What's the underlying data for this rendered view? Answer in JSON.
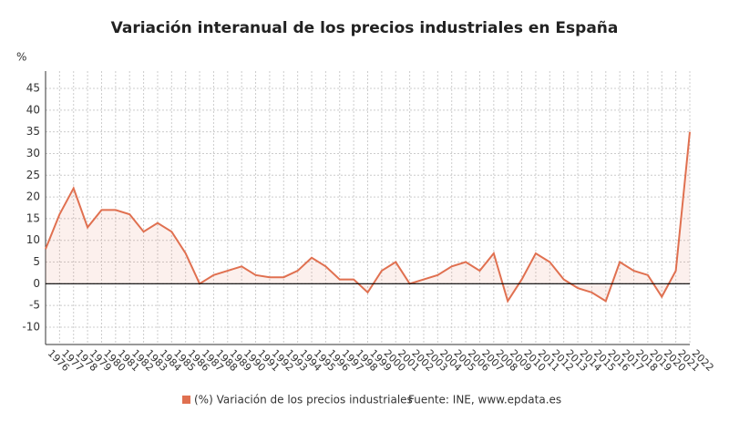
{
  "chart_data": {
    "type": "line",
    "title": "Variación interanual de los precios industriales en España",
    "y_label": "%",
    "source": "Fuente: INE, www.epdata.es",
    "x": [
      1976,
      1977,
      1978,
      1979,
      1980,
      1981,
      1982,
      1983,
      1984,
      1985,
      1986,
      1987,
      1988,
      1989,
      1990,
      1991,
      1992,
      1993,
      1994,
      1995,
      1996,
      1997,
      1998,
      1999,
      2000,
      2001,
      2002,
      2003,
      2004,
      2005,
      2006,
      2007,
      2008,
      2009,
      2010,
      2011,
      2012,
      2013,
      2014,
      2015,
      2016,
      2017,
      2018,
      2019,
      2020,
      2021,
      2022
    ],
    "series": [
      {
        "name": "(%) Variación de los precios industriales",
        "color": "#e07050",
        "values": [
          8,
          16,
          22,
          13,
          17,
          17,
          16,
          12,
          14,
          12,
          7,
          0,
          2,
          3,
          4,
          2,
          1.5,
          1.5,
          3,
          6,
          4,
          1,
          1,
          -2,
          3,
          5,
          0,
          1,
          2,
          4,
          5,
          3,
          7,
          -4,
          1,
          7,
          5,
          1,
          -1,
          -2,
          -4,
          5,
          3,
          2,
          -3,
          3,
          35
        ]
      }
    ],
    "xlim": [
      1976,
      2022
    ],
    "ylim": [
      -14,
      49
    ],
    "yticks": [
      -10,
      -5,
      0,
      5,
      10,
      15,
      20,
      25,
      30,
      35,
      40,
      45
    ],
    "grid": true
  }
}
